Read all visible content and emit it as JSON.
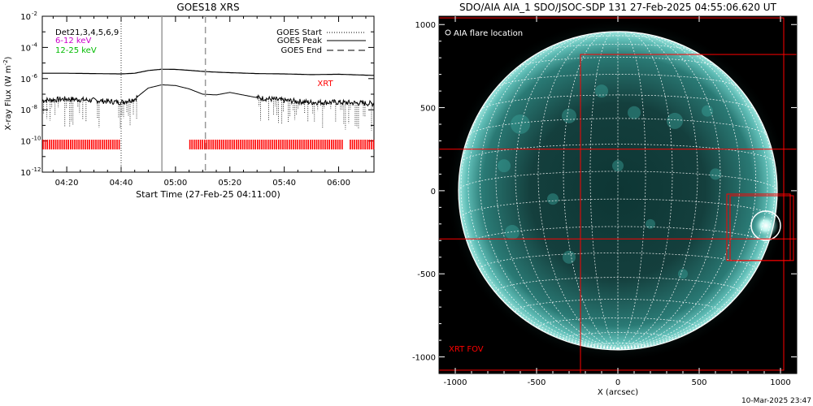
{
  "charts": {
    "goes": {
      "title": "GOES18 XRS",
      "xlabel": "Start Time (27-Feb-25 04:11:00)",
      "ylabel_main": "X-ray Flux (W m",
      "ylabel_sup": "-2",
      "ylabel_close": ")",
      "det_label": "Det21,3,4,5,6,9",
      "band_6_12": "6-12 keV",
      "band_12_25": "12-25 keV",
      "legend_start": "GOES Start",
      "legend_peak": "GOES Peak",
      "legend_end": "GOES End",
      "xrt_label": "XRT",
      "ytick_labels": [
        "10",
        "10",
        "10",
        "10",
        "10",
        "10"
      ],
      "ytick_exps": [
        "-2",
        "-4",
        "-6",
        "-8",
        "-10",
        "-12"
      ],
      "xtick_labels": [
        "04:20",
        "04:40",
        "05:00",
        "05:20",
        "05:40",
        "06:00"
      ]
    },
    "aia": {
      "title": "SDO/AIA AIA_1 SDO/JSOC-SDP 131 27-Feb-2025 04:55:06.620 UT",
      "legend_flare": "AIA flare location",
      "fov_label": "XRT FOV",
      "xlabel": "X (arcsec)",
      "xtick_labels": [
        "-1000",
        "-500",
        "0",
        "500",
        "1000"
      ],
      "ytick_labels": [
        "1000",
        "500",
        "0",
        "-500",
        "-1000"
      ],
      "footer_date": "10-Mar-2025 23:47"
    }
  },
  "colors": {
    "goes_line": "#000000",
    "band_6_12": "#cc00cc",
    "band_12_25": "#00cc00",
    "xrt": "#ff0000",
    "sun": "#2a8c86",
    "fov": "#ff0000"
  },
  "chart_data": [
    {
      "type": "line",
      "title": "GOES18 XRS",
      "xlabel": "Start Time (27-Feb-25 04:11:00)",
      "ylabel": "X-ray Flux (W m-2)",
      "yscale": "log",
      "ylim": [
        1e-12,
        0.01
      ],
      "xlim": [
        "04:11",
        "06:13"
      ],
      "series": [
        {
          "x": [
            "04:11",
            "04:20",
            "04:30",
            "04:40",
            "04:45",
            "04:50",
            "04:55",
            "05:00",
            "05:05",
            "05:10",
            "05:15",
            "05:20",
            "05:30",
            "05:40",
            "05:50",
            "06:00",
            "06:13"
          ],
          "values": [
            2.2e-06,
            2.2e-06,
            2.1e-06,
            2e-06,
            2.2e-06,
            3.3e-06,
            4e-06,
            3.9e-06,
            3.4e-06,
            2.9e-06,
            2.6e-06,
            2.4e-06,
            2.1e-06,
            2e-06,
            1.8e-06,
            1.9e-06,
            1.6e-06
          ]
        },
        {
          "x": [
            "04:11",
            "04:20",
            "04:30",
            "04:40",
            "04:45",
            "04:50",
            "04:55",
            "05:00",
            "05:05",
            "05:10",
            "05:15",
            "05:20",
            "05:30",
            "05:40",
            "05:50",
            "06:00",
            "06:13"
          ],
          "values": [
            4e-08,
            5e-08,
            4e-08,
            3e-08,
            5e-08,
            2.5e-07,
            4e-07,
            3.6e-07,
            2.2e-07,
            1e-07,
            9e-08,
            1.3e-07,
            6e-08,
            4e-08,
            3e-08,
            3e-08,
            2.5e-08
          ]
        }
      ],
      "markers": {
        "GOES Start": "04:40",
        "GOES Peak": "04:55",
        "GOES End": "05:11"
      },
      "xrt_coverage": [
        [
          "04:11",
          "04:40"
        ],
        [
          "05:05",
          "06:02"
        ],
        [
          "06:04",
          "06:13"
        ]
      ],
      "xticks": [
        "04:20",
        "04:40",
        "05:00",
        "05:20",
        "05:40",
        "06:00"
      ],
      "grid": false,
      "legend": "top-right"
    },
    {
      "type": "image",
      "title": "SDO/AIA AIA_1 SDO/JSOC-SDP 131 27-Feb-2025 04:55:06.620 UT",
      "xlabel": "X (arcsec)",
      "xlim": [
        -1100,
        1100
      ],
      "ylim": [
        -1100,
        1050
      ],
      "xticks": [
        -1000,
        -500,
        0,
        500,
        1000
      ],
      "yticks": [
        1000,
        500,
        0,
        -500,
        -1000
      ],
      "solar_radius_arcsec": 980,
      "flare_location_arcsec": [
        910,
        -210
      ],
      "xrt_fov_boxes_arcsec": [
        [
          -1100,
          -1080,
          1020,
          1040
        ],
        [
          -230,
          -1100,
          1100,
          820
        ],
        [
          -1100,
          -290,
          1100,
          250
        ],
        [
          670,
          -420,
          1060,
          -20
        ],
        [
          690,
          -420,
          1080,
          -30
        ]
      ]
    }
  ]
}
